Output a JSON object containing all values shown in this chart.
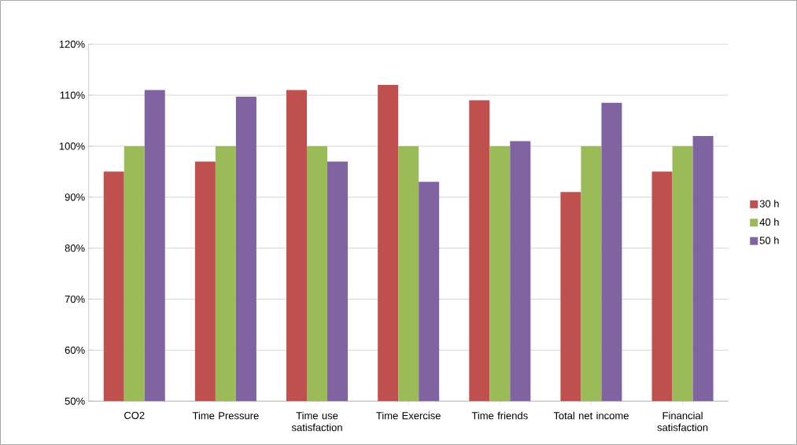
{
  "chart_data": {
    "type": "bar",
    "categories": [
      "CO2",
      "Time Pressure",
      "Time use satisfaction",
      "Time Exercise",
      "Time friends",
      "Total net income",
      "Financial satisfaction"
    ],
    "series": [
      {
        "name": "30 h",
        "color": "#c0504d",
        "values": [
          95,
          97,
          111,
          112,
          109,
          91,
          95
        ]
      },
      {
        "name": "40 h",
        "color": "#9bbb59",
        "values": [
          100,
          100,
          100,
          100,
          100,
          100,
          100
        ]
      },
      {
        "name": "50 h",
        "color": "#8064a2",
        "values": [
          111,
          109.7,
          97,
          93,
          101,
          108.5,
          102
        ]
      }
    ],
    "ylim": [
      50,
      120
    ],
    "yticks": [
      {
        "value": 50,
        "label": "50%"
      },
      {
        "value": 60,
        "label": "60%"
      },
      {
        "value": 70,
        "label": "70%"
      },
      {
        "value": 80,
        "label": "80%"
      },
      {
        "value": 90,
        "label": "90%"
      },
      {
        "value": 100,
        "label": "100%"
      },
      {
        "value": 110,
        "label": "110%"
      },
      {
        "value": 120,
        "label": "120%"
      }
    ],
    "grid": "y",
    "legend": "right"
  }
}
